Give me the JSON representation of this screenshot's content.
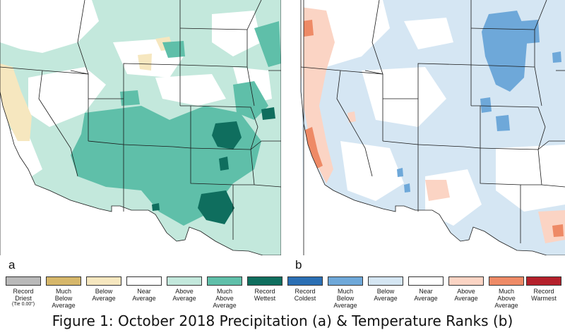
{
  "panels": {
    "a": {
      "letter": "a"
    },
    "b": {
      "letter": "b"
    }
  },
  "colors": {
    "record_driest": "#b9b9b9",
    "much_below_avg_precip": "#d6b76a",
    "below_avg_precip": "#f6e7bf",
    "near_avg": "#ffffff",
    "above_avg_precip": "#c3e8dc",
    "much_above_avg_precip": "#5fbfa9",
    "record_wettest": "#0f6e5e",
    "record_coldest": "#2b6fb4",
    "much_below_avg_temp": "#6ea8d9",
    "below_avg_temp": "#d5e6f3",
    "above_avg_temp": "#fbd4c4",
    "much_above_avg_temp": "#ee8a66",
    "record_warmest": "#b4202b",
    "border": "#1a1a1a"
  },
  "legend": [
    {
      "label": "Record\nDriest",
      "sub": "(Tie 0.00\")",
      "color": "#b9b9b9"
    },
    {
      "label": "Much\nBelow\nAverage",
      "color": "#d6b76a"
    },
    {
      "label": "Below\nAverage",
      "color": "#f6e7bf"
    },
    {
      "label": "Near\nAverage",
      "color": "#ffffff"
    },
    {
      "label": "Above\nAverage",
      "color": "#c3e8dc"
    },
    {
      "label": "Much\nAbove\nAverage",
      "color": "#5fbfa9"
    },
    {
      "label": "Record\nWettest",
      "color": "#0f6e5e"
    },
    {
      "label": "Record\nColdest",
      "color": "#2b6fb4"
    },
    {
      "label": "Much\nBelow\nAverage",
      "color": "#6ea8d9"
    },
    {
      "label": "Below\nAverage",
      "color": "#d5e6f3"
    },
    {
      "label": "Near\nAverage",
      "color": "#ffffff"
    },
    {
      "label": "Above\nAverage",
      "color": "#fbd4c4"
    },
    {
      "label": "Much\nAbove\nAverage",
      "color": "#ee8a66"
    },
    {
      "label": "Record\nWarmest",
      "color": "#b4202b"
    }
  ],
  "caption": "Figure 1: October 2018 Precipitation (a) & Temperature Ranks (b)"
}
